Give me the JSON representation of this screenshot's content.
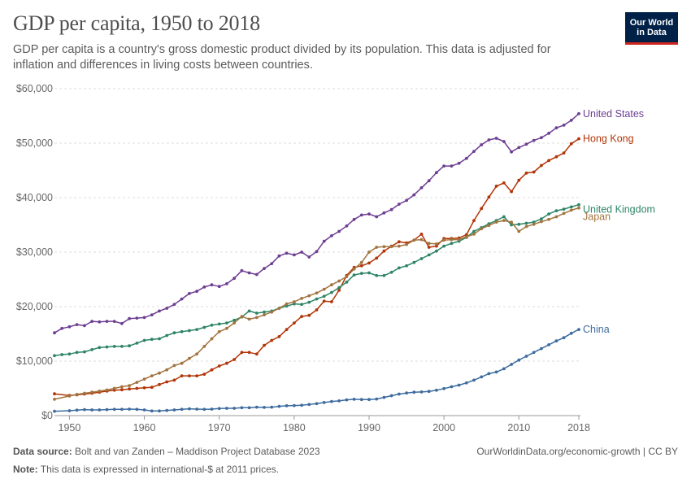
{
  "header": {
    "title": "GDP per capita, 1950 to 2018",
    "subtitle": "GDP per capita is a country's gross domestic product divided by its population. This data is adjusted for inflation and differences in living costs between countries.",
    "logo_line1": "Our World",
    "logo_line2": "in Data"
  },
  "footer": {
    "source_label": "Data source:",
    "source_text": "Bolt and van Zanden – Maddison Project Database 2023",
    "credit": "OurWorldinData.org/economic-growth | CC BY",
    "note_label": "Note:",
    "note_text": "This data is expressed in international-$ at 2011 prices."
  },
  "chart_data": {
    "type": "line",
    "title": "GDP per capita, 1950 to 2018",
    "xlim": [
      1948,
      2018
    ],
    "ylim": [
      0,
      60000
    ],
    "x_ticks": [
      1950,
      1960,
      1970,
      1980,
      1990,
      2000,
      2010,
      2018
    ],
    "y_ticks": [
      0,
      10000,
      20000,
      30000,
      40000,
      50000,
      60000
    ],
    "y_tick_labels": [
      "$0",
      "$10,000",
      "$20,000",
      "$30,000",
      "$40,000",
      "$50,000",
      "$60,000"
    ],
    "grid": "horizontal",
    "legend": "end-of-line labels",
    "series": [
      {
        "name": "United States",
        "color": "#6d3e91",
        "x": [
          1948,
          1949,
          1950,
          1951,
          1952,
          1953,
          1954,
          1955,
          1956,
          1957,
          1958,
          1959,
          1960,
          1961,
          1962,
          1963,
          1964,
          1965,
          1966,
          1967,
          1968,
          1969,
          1970,
          1971,
          1972,
          1973,
          1974,
          1975,
          1976,
          1977,
          1978,
          1979,
          1980,
          1981,
          1982,
          1983,
          1984,
          1985,
          1986,
          1987,
          1988,
          1989,
          1990,
          1991,
          1992,
          1993,
          1994,
          1995,
          1996,
          1997,
          1998,
          1999,
          2000,
          2001,
          2002,
          2003,
          2004,
          2005,
          2006,
          2007,
          2008,
          2009,
          2010,
          2011,
          2012,
          2013,
          2014,
          2015,
          2016,
          2017,
          2018
        ],
        "values": [
          15200,
          16000,
          16300,
          16700,
          16500,
          17300,
          17200,
          17300,
          17300,
          16900,
          17800,
          17900,
          18000,
          18500,
          19200,
          19700,
          20400,
          21400,
          22400,
          22800,
          23600,
          24000,
          23700,
          24200,
          25200,
          26600,
          26200,
          25900,
          27000,
          27900,
          29300,
          29800,
          29500,
          30000,
          29100,
          30100,
          32000,
          33000,
          33800,
          34800,
          36000,
          36800,
          37000,
          36500,
          37200,
          37800,
          38800,
          39500,
          40500,
          41800,
          43100,
          44600,
          45800,
          45800,
          46300,
          47200,
          48500,
          49700,
          50600,
          50900,
          50300,
          48400,
          49200,
          49800,
          50500,
          51000,
          51800,
          52800,
          53300,
          54200,
          55400
        ]
      },
      {
        "name": "Hong Kong",
        "color": "#b13507",
        "x": [
          1948,
          1950,
          1951,
          1952,
          1953,
          1954,
          1955,
          1956,
          1957,
          1958,
          1959,
          1960,
          1961,
          1962,
          1963,
          1964,
          1965,
          1966,
          1967,
          1968,
          1969,
          1970,
          1971,
          1972,
          1973,
          1974,
          1975,
          1976,
          1977,
          1978,
          1979,
          1980,
          1981,
          1982,
          1983,
          1984,
          1985,
          1986,
          1987,
          1988,
          1989,
          1990,
          1991,
          1992,
          1993,
          1994,
          1995,
          1996,
          1997,
          1998,
          1999,
          2000,
          2001,
          2002,
          2003,
          2004,
          2005,
          2006,
          2007,
          2008,
          2009,
          2010,
          2011,
          2012,
          2013,
          2014,
          2015,
          2016,
          2017,
          2018
        ],
        "values": [
          4000,
          3700,
          3800,
          3950,
          4100,
          4300,
          4500,
          4650,
          4750,
          4900,
          5000,
          5100,
          5200,
          5700,
          6200,
          6500,
          7300,
          7300,
          7300,
          7600,
          8400,
          9100,
          9600,
          10300,
          11600,
          11600,
          11300,
          12900,
          13800,
          14500,
          15800,
          17000,
          18200,
          18400,
          19400,
          21000,
          20900,
          23000,
          25700,
          27200,
          27500,
          28000,
          28900,
          30200,
          31100,
          31900,
          31700,
          32200,
          33300,
          30900,
          31100,
          32500,
          32500,
          32600,
          33200,
          35800,
          38000,
          40100,
          42100,
          42700,
          41100,
          43200,
          44500,
          44700,
          45900,
          46800,
          47500,
          48200,
          49900,
          50800
        ]
      },
      {
        "name": "United Kingdom",
        "color": "#2e8566",
        "x": [
          1948,
          1949,
          1950,
          1951,
          1952,
          1953,
          1954,
          1955,
          1956,
          1957,
          1958,
          1959,
          1960,
          1961,
          1962,
          1963,
          1964,
          1965,
          1966,
          1967,
          1968,
          1969,
          1970,
          1971,
          1972,
          1973,
          1974,
          1975,
          1976,
          1977,
          1978,
          1979,
          1980,
          1981,
          1982,
          1983,
          1984,
          1985,
          1986,
          1987,
          1988,
          1989,
          1990,
          1991,
          1992,
          1993,
          1994,
          1995,
          1996,
          1997,
          1998,
          1999,
          2000,
          2001,
          2002,
          2003,
          2004,
          2005,
          2006,
          2007,
          2008,
          2009,
          2010,
          2011,
          2012,
          2013,
          2014,
          2015,
          2016,
          2017,
          2018
        ],
        "values": [
          11000,
          11200,
          11300,
          11600,
          11700,
          12100,
          12500,
          12600,
          12700,
          12700,
          12800,
          13300,
          13800,
          14000,
          14100,
          14700,
          15200,
          15400,
          15600,
          15800,
          16200,
          16600,
          16800,
          17000,
          17500,
          18100,
          19200,
          18800,
          19000,
          19200,
          19700,
          20100,
          20500,
          20400,
          20800,
          21400,
          21900,
          22600,
          23500,
          24500,
          25800,
          26100,
          26200,
          25700,
          25700,
          26300,
          27100,
          27500,
          28100,
          28800,
          29500,
          30200,
          31100,
          31600,
          32000,
          32700,
          33800,
          34500,
          35200,
          35800,
          36500,
          35000,
          35100,
          35300,
          35500,
          36100,
          37000,
          37600,
          37900,
          38300,
          38700
        ]
      },
      {
        "name": "Japan",
        "color": "#a2743f",
        "x": [
          1948,
          1950,
          1951,
          1952,
          1953,
          1954,
          1955,
          1956,
          1957,
          1958,
          1959,
          1960,
          1961,
          1962,
          1963,
          1964,
          1965,
          1966,
          1967,
          1968,
          1969,
          1970,
          1971,
          1972,
          1973,
          1974,
          1975,
          1976,
          1977,
          1978,
          1979,
          1980,
          1981,
          1982,
          1983,
          1984,
          1985,
          1986,
          1987,
          1988,
          1989,
          1990,
          1991,
          1992,
          1993,
          1994,
          1995,
          1996,
          1997,
          1998,
          1999,
          2000,
          2001,
          2002,
          2003,
          2004,
          2005,
          2006,
          2007,
          2008,
          2009,
          2010,
          2011,
          2012,
          2013,
          2014,
          2015,
          2016,
          2017,
          2018
        ],
        "values": [
          3000,
          3600,
          3900,
          4100,
          4300,
          4500,
          4700,
          5000,
          5300,
          5500,
          6100,
          6700,
          7300,
          7800,
          8400,
          9200,
          9600,
          10500,
          11300,
          12700,
          14100,
          15400,
          16000,
          17000,
          18200,
          17700,
          18000,
          18500,
          19000,
          19700,
          20500,
          20900,
          21500,
          22000,
          22500,
          23200,
          24000,
          24700,
          25500,
          26900,
          28100,
          30000,
          30900,
          31000,
          31000,
          31100,
          31400,
          32200,
          32300,
          31600,
          31500,
          32200,
          32300,
          32300,
          32800,
          33300,
          34300,
          34900,
          35500,
          35800,
          35500,
          33800,
          34700,
          35100,
          35600,
          36000,
          36500,
          37100,
          37700,
          38100
        ]
      },
      {
        "name": "China",
        "color": "#3e6c9f",
        "x": [
          1948,
          1950,
          1951,
          1952,
          1953,
          1954,
          1955,
          1956,
          1957,
          1958,
          1959,
          1960,
          1961,
          1962,
          1963,
          1964,
          1965,
          1966,
          1967,
          1968,
          1969,
          1970,
          1971,
          1972,
          1973,
          1974,
          1975,
          1976,
          1977,
          1978,
          1979,
          1980,
          1981,
          1982,
          1983,
          1984,
          1985,
          1986,
          1987,
          1988,
          1989,
          1990,
          1991,
          1992,
          1993,
          1994,
          1995,
          1996,
          1997,
          1998,
          1999,
          2000,
          2001,
          2002,
          2003,
          2004,
          2005,
          2006,
          2007,
          2008,
          2009,
          2010,
          2011,
          2012,
          2013,
          2014,
          2015,
          2016,
          2017,
          2018
        ],
        "values": [
          800,
          900,
          1000,
          1100,
          1050,
          1050,
          1100,
          1150,
          1150,
          1200,
          1150,
          1050,
          850,
          850,
          950,
          1050,
          1150,
          1250,
          1200,
          1150,
          1200,
          1300,
          1350,
          1350,
          1450,
          1450,
          1550,
          1500,
          1550,
          1700,
          1800,
          1850,
          1900,
          2050,
          2200,
          2400,
          2600,
          2700,
          2900,
          3000,
          2950,
          2950,
          3050,
          3350,
          3650,
          3950,
          4150,
          4300,
          4350,
          4450,
          4650,
          4950,
          5300,
          5600,
          6000,
          6500,
          7100,
          7700,
          8000,
          8600,
          9400,
          10200,
          10900,
          11600,
          12300,
          13000,
          13700,
          14300,
          15100,
          15800
        ]
      }
    ]
  }
}
